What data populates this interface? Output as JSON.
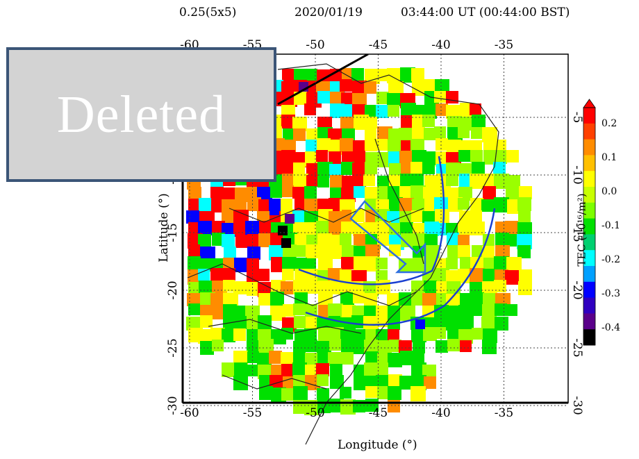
{
  "header": {
    "resolution": "0.25(5x5)",
    "date": "2020/01/19",
    "time": "03:44:00 UT (00:44:00 BST)"
  },
  "axes": {
    "xlabel": "Longitude (°)",
    "ylabel": "Latitude (°)",
    "lon_ticks": [
      "-60",
      "-55",
      "-50",
      "-45",
      "-40",
      "-35"
    ],
    "lat_ticks": [
      "-5",
      "-10",
      "-15",
      "-20",
      "-25",
      "-30"
    ],
    "lon_range": [
      -61,
      -28
    ],
    "lat_range": [
      -31,
      -0.5
    ]
  },
  "colorbar": {
    "label": "TEC (10¹⁶/m²)",
    "ticks": [
      "0.2",
      "0.1",
      "0.0",
      "-0.1",
      "-0.2",
      "-0.3",
      "-0.4"
    ],
    "range": [
      -0.45,
      0.25
    ]
  },
  "overlay": {
    "text": "Deleted",
    "bg": "#d3d3d3",
    "border": "#3b5577"
  },
  "annotations": {
    "arrow_color": "#1a3fd0",
    "outline_arrow_color": "#2f6fe0"
  },
  "colors": {
    "red": "#ff0000",
    "orange": "#ff8c00",
    "yellow": "#ffff00",
    "lime": "#9aff00",
    "green": "#00e000",
    "cyan": "#00ffff",
    "blue": "#0000ff",
    "purple": "#5a008a",
    "black": "#000000"
  }
}
